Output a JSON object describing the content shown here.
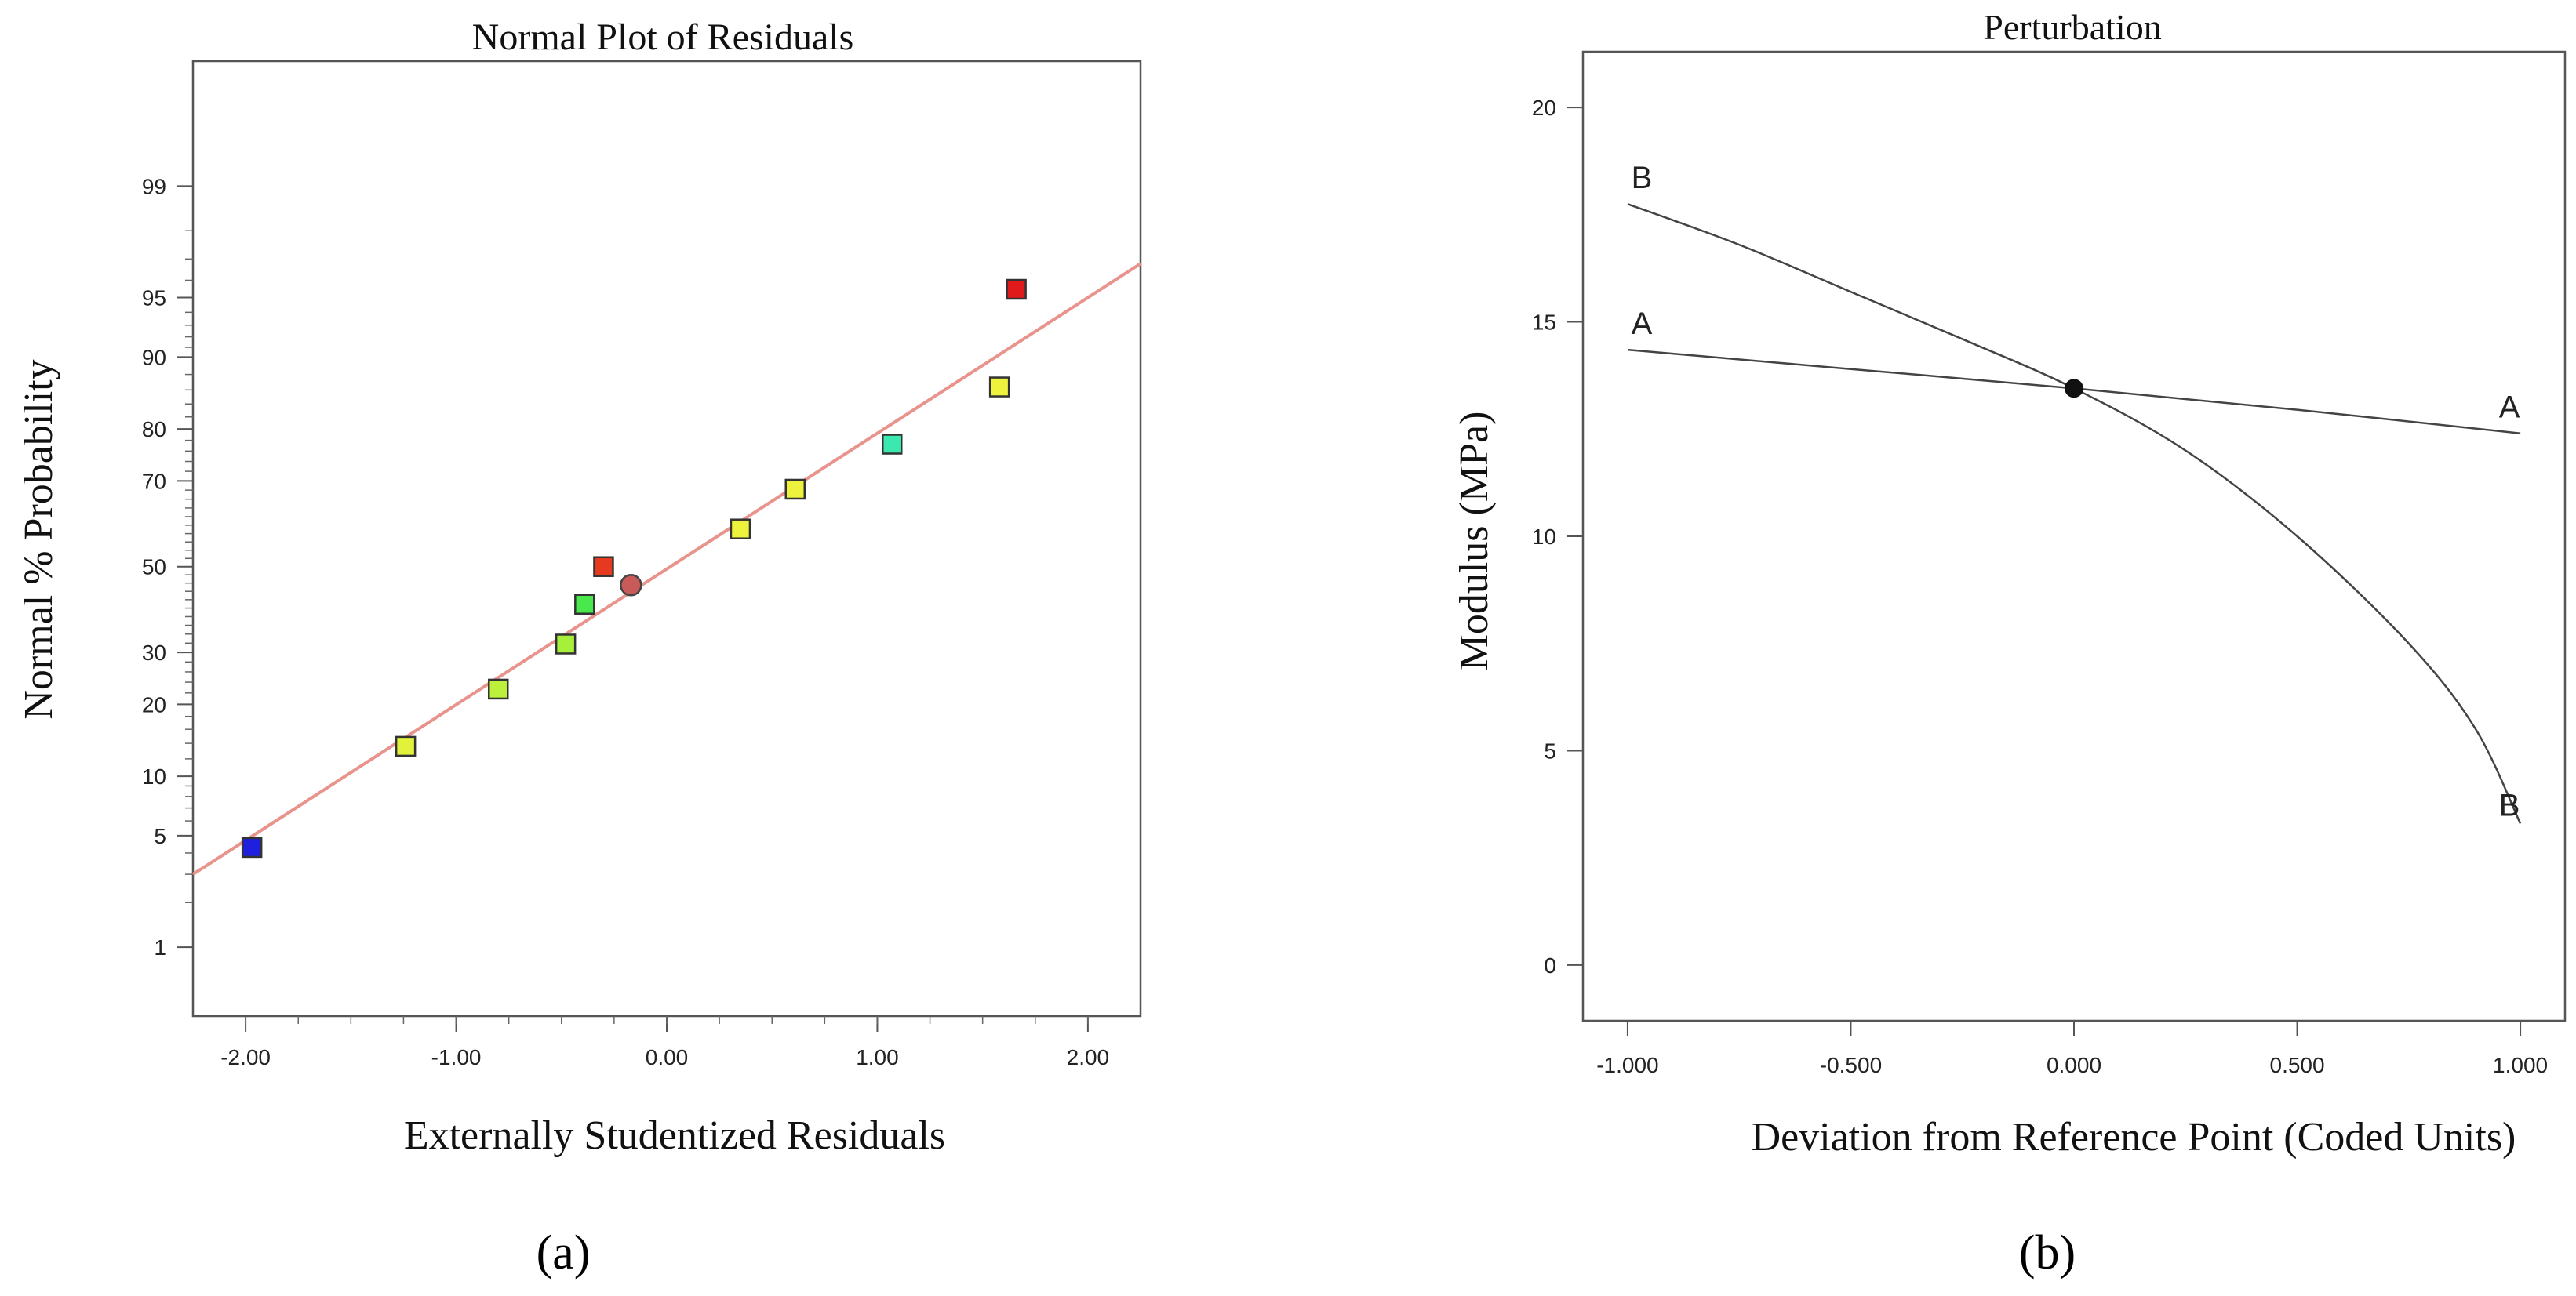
{
  "panels": [
    {
      "caption": "(a)",
      "chart_data": {
        "type": "scatter",
        "title": "Normal Plot of Residuals",
        "xlabel": "Externally Studentized Residuals",
        "ylabel": "Normal % Probability",
        "xlim": [
          -2.25,
          2.25
        ],
        "ylim_percent": [
          0.3,
          99.9
        ],
        "x_ticks": [
          -2.0,
          -1.0,
          0.0,
          1.0,
          2.0
        ],
        "x_tick_labels": [
          "-2.00",
          "-1.00",
          "0.00",
          "1.00",
          "2.00"
        ],
        "y_ticks": [
          1,
          5,
          10,
          20,
          30,
          50,
          70,
          80,
          90,
          95,
          99
        ],
        "y_tick_labels": [
          "1",
          "5",
          "10",
          "20",
          "30",
          "50",
          "70",
          "80",
          "90",
          "95",
          "99"
        ],
        "reference_line": {
          "x": [
            -2.25,
            2.25
          ],
          "y_percent": [
            3.0,
            96.8
          ],
          "color": "#e8948c"
        },
        "points": [
          {
            "x": -1.97,
            "y": 4.3,
            "marker": "square",
            "color": "#1f1fe0"
          },
          {
            "x": -1.24,
            "y": 13.6,
            "marker": "square",
            "color": "#e2f23a"
          },
          {
            "x": -0.8,
            "y": 22.7,
            "marker": "square",
            "color": "#bdf03a"
          },
          {
            "x": -0.48,
            "y": 31.8,
            "marker": "square",
            "color": "#a6ef3a"
          },
          {
            "x": -0.39,
            "y": 40.9,
            "marker": "square",
            "color": "#49e84c"
          },
          {
            "x": -0.3,
            "y": 50.0,
            "marker": "square",
            "color": "#e53a1f"
          },
          {
            "x": -0.17,
            "y": 45.5,
            "marker": "circle",
            "color": "#c95a5a"
          },
          {
            "x": 0.35,
            "y": 59.1,
            "marker": "square",
            "color": "#eef23c"
          },
          {
            "x": 0.61,
            "y": 68.2,
            "marker": "square",
            "color": "#eef23c"
          },
          {
            "x": 1.07,
            "y": 77.3,
            "marker": "square",
            "color": "#3ae8b0"
          },
          {
            "x": 1.58,
            "y": 86.4,
            "marker": "square",
            "color": "#eef23c"
          },
          {
            "x": 1.66,
            "y": 95.5,
            "marker": "square",
            "color": "#e01a1a"
          }
        ]
      }
    },
    {
      "caption": "(b)",
      "chart_data": {
        "type": "line",
        "title": "Perturbation",
        "xlabel": "Deviation from Reference Point (Coded Units)",
        "ylabel": "Modulus (MPa)",
        "xlim": [
          -1.1,
          1.1
        ],
        "ylim": [
          -1.3,
          21.3
        ],
        "x_ticks": [
          -1.0,
          -0.5,
          0.0,
          0.5,
          1.0
        ],
        "x_tick_labels": [
          "-1.000",
          "-0.500",
          "0.000",
          "0.500",
          "1.000"
        ],
        "y_ticks": [
          0,
          5,
          10,
          15,
          20
        ],
        "y_tick_labels": [
          "0",
          "5",
          "10",
          "15",
          "20"
        ],
        "reference_point": {
          "x": 0.0,
          "y": 13.45
        },
        "series": [
          {
            "name": "A",
            "start_label": "A",
            "end_label": "A",
            "x": [
              -1.0,
              -0.5,
              0.0,
              0.5,
              1.0
            ],
            "y": [
              14.35,
              13.9,
              13.45,
              12.95,
              12.4
            ]
          },
          {
            "name": "B",
            "start_label": "B",
            "end_label": "B",
            "x": [
              -1.0,
              -0.75,
              -0.5,
              -0.25,
              0.0,
              0.25,
              0.5,
              0.75,
              0.9,
              1.0
            ],
            "y": [
              17.75,
              16.8,
              15.7,
              14.6,
              13.45,
              12.0,
              10.0,
              7.5,
              5.5,
              3.3
            ]
          }
        ]
      }
    }
  ]
}
